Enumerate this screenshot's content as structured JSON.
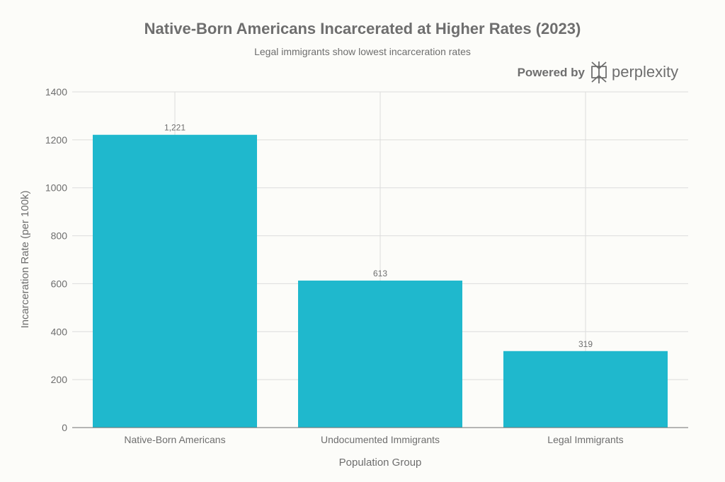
{
  "brand": {
    "powered_by": "Powered by",
    "name": "perplexity",
    "icon": "perplexity-logo-icon"
  },
  "chart_data": {
    "type": "bar",
    "title": "Native-Born Americans Incarcerated at Higher Rates (2023)",
    "subtitle": "Legal immigrants show lowest incarceration rates",
    "xlabel": "Population Group",
    "ylabel": "Incarceration Rate (per 100k)",
    "categories": [
      "Native-Born Americans",
      "Undocumented Immigrants",
      "Legal Immigrants"
    ],
    "values": [
      1221,
      613,
      319
    ],
    "value_labels": [
      "1,221",
      "613",
      "319"
    ],
    "ylim": [
      0,
      1400
    ],
    "yticks": [
      0,
      200,
      400,
      600,
      800,
      1000,
      1200,
      1400
    ],
    "bar_color": "#1fb8cd",
    "grid": true
  }
}
